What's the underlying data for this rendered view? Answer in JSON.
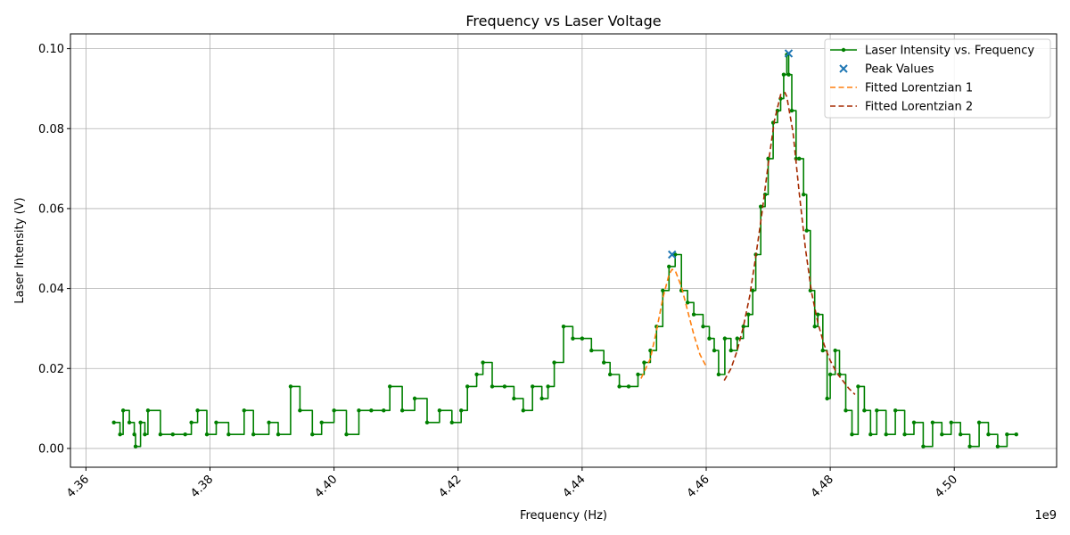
{
  "chart_data": {
    "type": "line",
    "title": "Frequency vs Laser Voltage",
    "xlabel": "Frequency (Hz)",
    "ylabel": "Laser Intensity (V)",
    "x_offset_label": "1e9",
    "xlim": [
      4.3575,
      4.5165
    ],
    "ylim": [
      -0.0047,
      0.1037
    ],
    "x_ticks": [
      4.36,
      4.38,
      4.4,
      4.42,
      4.44,
      4.46,
      4.48,
      4.5
    ],
    "x_tick_labels": [
      "4.36",
      "4.38",
      "4.40",
      "4.42",
      "4.44",
      "4.46",
      "4.48",
      "4.50"
    ],
    "y_ticks": [
      0.0,
      0.02,
      0.04,
      0.06,
      0.08,
      0.1
    ],
    "y_tick_labels": [
      "0.00",
      "0.02",
      "0.04",
      "0.06",
      "0.08",
      "0.10"
    ],
    "grid": true,
    "legend_position": "top-right",
    "series": [
      {
        "name": "Laser Intensity vs. Frequency",
        "kind": "line-marker",
        "color": "#008000",
        "x": [
          4.3645,
          4.3655,
          4.366,
          4.367,
          4.3678,
          4.368,
          4.3688,
          4.3695,
          4.37,
          4.372,
          4.374,
          4.376,
          4.377,
          4.378,
          4.3795,
          4.381,
          4.383,
          4.3855,
          4.387,
          4.3895,
          4.391,
          4.393,
          4.3945,
          4.3965,
          4.398,
          4.4,
          4.402,
          4.404,
          4.406,
          4.408,
          4.409,
          4.411,
          4.413,
          4.415,
          4.417,
          4.419,
          4.4205,
          4.4215,
          4.423,
          4.424,
          4.4255,
          4.4275,
          4.429,
          4.4305,
          4.432,
          4.4335,
          4.4345,
          4.4355,
          4.437,
          4.4385,
          4.44,
          4.4415,
          4.4435,
          4.4445,
          4.446,
          4.4475,
          4.449,
          4.45,
          4.451,
          4.452,
          4.453,
          4.454,
          4.455,
          4.456,
          4.457,
          4.458,
          4.4595,
          4.4605,
          4.4613,
          4.462,
          4.463,
          4.464,
          4.465,
          4.466,
          4.4668,
          4.4675,
          4.468,
          4.4688,
          4.4695,
          4.47,
          4.4708,
          4.4715,
          4.472,
          4.4725,
          4.473,
          4.4733,
          4.4738,
          4.4745,
          4.475,
          4.4757,
          4.4762,
          4.4768,
          4.4775,
          4.478,
          4.4788,
          4.4795,
          4.48,
          4.4808,
          4.4815,
          4.4825,
          4.4835,
          4.4845,
          4.4855,
          4.4865,
          4.4875,
          4.489,
          4.4905,
          4.492,
          4.4935,
          4.495,
          4.4965,
          4.498,
          4.4995,
          4.501,
          4.5025,
          4.504,
          4.5055,
          4.507,
          4.5085,
          4.51
        ],
        "y": [
          0.0065,
          0.0035,
          0.0095,
          0.0065,
          0.0035,
          0.0005,
          0.0065,
          0.0035,
          0.0095,
          0.0035,
          0.0035,
          0.0035,
          0.0065,
          0.0095,
          0.0035,
          0.0065,
          0.0035,
          0.0095,
          0.0035,
          0.0065,
          0.0035,
          0.0155,
          0.0095,
          0.0035,
          0.0065,
          0.0095,
          0.0035,
          0.0095,
          0.0095,
          0.0095,
          0.0155,
          0.0095,
          0.0125,
          0.0065,
          0.0095,
          0.0065,
          0.0095,
          0.0155,
          0.0185,
          0.0215,
          0.0155,
          0.0155,
          0.0125,
          0.0095,
          0.0155,
          0.0125,
          0.0155,
          0.0215,
          0.0305,
          0.0275,
          0.0275,
          0.0245,
          0.0215,
          0.0185,
          0.0155,
          0.0155,
          0.0185,
          0.0215,
          0.0245,
          0.0305,
          0.0395,
          0.0455,
          0.0485,
          0.0395,
          0.0365,
          0.0335,
          0.0305,
          0.0275,
          0.0245,
          0.0185,
          0.0275,
          0.0245,
          0.0275,
          0.0305,
          0.0335,
          0.0395,
          0.0485,
          0.0605,
          0.0635,
          0.0725,
          0.0815,
          0.0845,
          0.0875,
          0.0935,
          0.0985,
          0.0935,
          0.0845,
          0.0725,
          0.0725,
          0.0635,
          0.0545,
          0.0395,
          0.0305,
          0.0335,
          0.0245,
          0.0125,
          0.0185,
          0.0245,
          0.0185,
          0.0095,
          0.0035,
          0.0155,
          0.0095,
          0.0035,
          0.0095,
          0.0035,
          0.0095,
          0.0035,
          0.0065,
          0.0005,
          0.0065,
          0.0035,
          0.0065,
          0.0035,
          0.0005,
          0.0065,
          0.0035,
          0.0005,
          0.0035,
          0.0035
        ]
      },
      {
        "name": "Peak Values",
        "kind": "marker",
        "color": "#1f77b4",
        "x": [
          4.4545,
          4.4733
        ],
        "y": [
          0.0485,
          0.0988
        ]
      },
      {
        "name": "Fitted Lorentzian 1",
        "kind": "dashed-line",
        "color": "#ff7f0e",
        "x": [
          4.4495,
          4.451,
          4.452,
          4.453,
          4.454,
          4.4545,
          4.455,
          4.456,
          4.457,
          4.458,
          4.459,
          4.46
        ],
        "y": [
          0.0175,
          0.0225,
          0.0295,
          0.0375,
          0.0435,
          0.0448,
          0.0445,
          0.0405,
          0.0345,
          0.0285,
          0.0235,
          0.0205
        ]
      },
      {
        "name": "Fitted Lorentzian 2",
        "kind": "dashed-line",
        "color": "#a52a00",
        "x": [
          4.4629,
          4.464,
          4.465,
          4.466,
          4.467,
          4.468,
          4.469,
          4.47,
          4.471,
          4.472,
          4.4727,
          4.473,
          4.474,
          4.475,
          4.476,
          4.477,
          4.478,
          4.479,
          4.48,
          4.481,
          4.482,
          4.483,
          4.484
        ],
        "y": [
          0.017,
          0.02,
          0.0245,
          0.0305,
          0.038,
          0.048,
          0.059,
          0.071,
          0.082,
          0.0885,
          0.089,
          0.088,
          0.079,
          0.064,
          0.05,
          0.039,
          0.0315,
          0.026,
          0.022,
          0.019,
          0.017,
          0.015,
          0.0135
        ]
      }
    ]
  }
}
